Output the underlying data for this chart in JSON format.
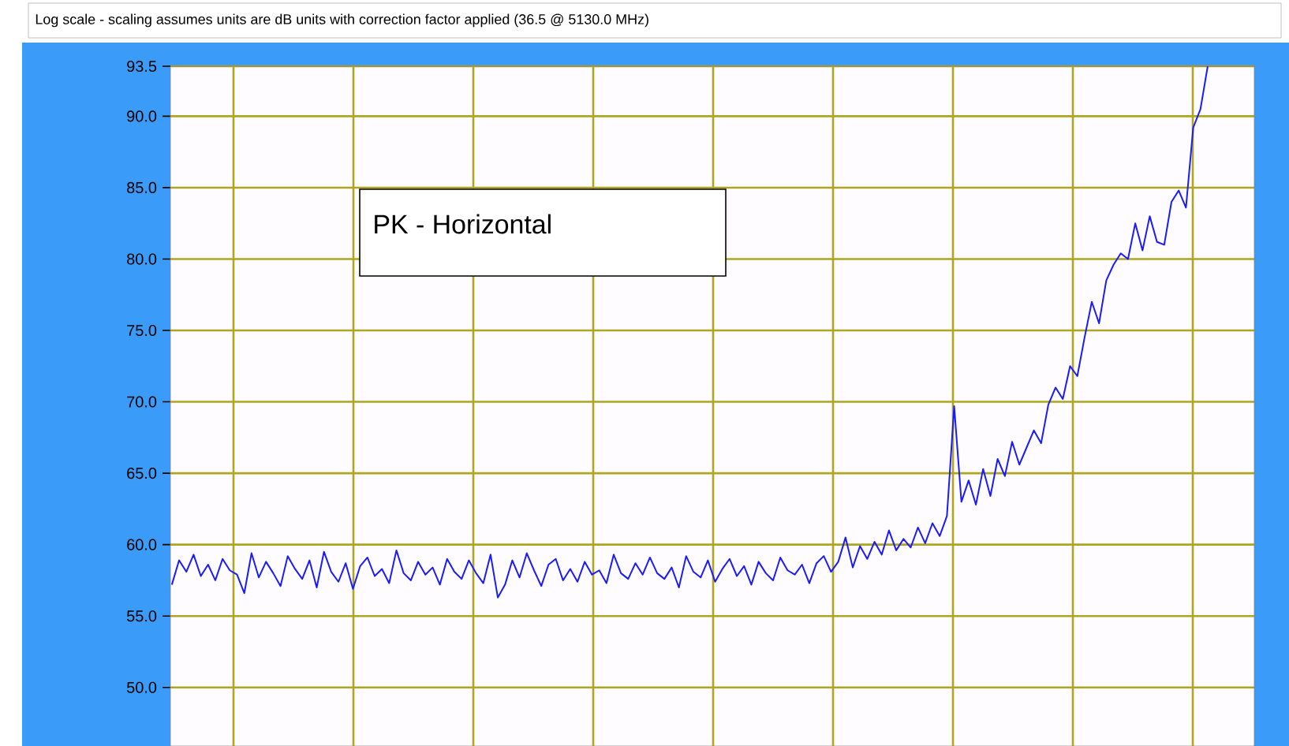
{
  "chart_data": {
    "type": "line",
    "title": "Log scale - scaling assumes units are dB units with correction factor applied (36.5 @ 5130.0 MHz)",
    "annotations": [
      "PK - Horizontal"
    ],
    "categories": [
      null,
      null,
      null,
      null,
      null,
      null,
      null,
      null,
      null,
      null,
      null,
      null,
      null,
      null,
      null,
      null,
      null,
      null,
      null,
      null,
      null,
      null,
      null,
      null,
      null,
      null,
      null,
      null,
      null,
      null,
      null,
      null,
      null,
      null,
      null,
      null,
      null,
      null,
      null,
      null,
      null,
      null,
      null,
      null,
      null,
      null,
      null,
      null,
      null,
      null,
      null,
      null,
      null,
      null,
      null,
      null,
      null,
      null,
      null,
      null,
      null,
      null,
      null,
      null,
      null,
      null,
      null,
      null,
      null,
      null,
      null,
      null,
      null,
      null,
      null,
      null,
      null,
      null,
      null,
      null,
      null,
      null,
      null,
      null,
      null,
      null,
      null,
      null,
      null,
      null,
      null,
      null,
      null,
      null,
      null,
      null,
      null,
      null,
      null,
      null,
      null,
      null,
      null,
      null,
      null,
      null,
      null,
      null,
      null,
      null,
      null,
      null,
      null,
      null,
      null,
      null,
      null,
      null,
      null,
      null,
      null,
      null,
      null,
      null,
      null,
      null,
      null,
      null,
      null,
      null,
      null,
      null,
      null,
      null,
      null,
      null,
      null,
      null,
      null,
      null,
      null,
      null,
      null,
      null
    ],
    "ylim": [
      45.9,
      93.5
    ],
    "yticks": [
      {
        "value": 50,
        "label": "50.0"
      },
      {
        "value": 55,
        "label": "55.0"
      },
      {
        "value": 60,
        "label": "60.0"
      },
      {
        "value": 65,
        "label": "65.0"
      },
      {
        "value": 70,
        "label": "70.0"
      },
      {
        "value": 75,
        "label": "75.0"
      },
      {
        "value": 80,
        "label": "80.0"
      },
      {
        "value": 85,
        "label": "85.0"
      },
      {
        "value": 90,
        "label": "90.0"
      },
      93.5
    ],
    "tick_labels": "y",
    "grid": true,
    "series": [
      {
        "color": "#1a1aff",
        "values": [
          57.2,
          58.9,
          58.1,
          59.3,
          57.8,
          58.6,
          57.5,
          59.0,
          58.2,
          57.9,
          56.6,
          59.4,
          57.7,
          58.8,
          58.0,
          57.1,
          59.2,
          58.3,
          57.6,
          58.9,
          57.0,
          59.5,
          58.1,
          57.4,
          58.7,
          56.9,
          58.5,
          59.1,
          57.8,
          58.3,
          57.3,
          59.6,
          58.0,
          57.5,
          58.8,
          57.9,
          58.4,
          57.2,
          59.0,
          58.1,
          57.6,
          58.9,
          58.0,
          57.3,
          59.3,
          56.3,
          57.2,
          58.9,
          57.7,
          59.4,
          58.2,
          57.1,
          58.6,
          59.0,
          57.5,
          58.3,
          57.4,
          58.8,
          57.9,
          58.2,
          57.3,
          59.3,
          58.0,
          57.6,
          58.7,
          57.9,
          59.1,
          58.0,
          57.6,
          58.4,
          57.0,
          59.2,
          58.1,
          57.7,
          58.9,
          57.4,
          58.3,
          59.0,
          57.8,
          58.5,
          57.2,
          58.8,
          58.0,
          57.5,
          59.1,
          58.2,
          57.9,
          58.6,
          57.3,
          58.7,
          59.2,
          58.1,
          58.8,
          60.5,
          58.4,
          59.9,
          59.0,
          60.2,
          59.3,
          61.0,
          59.6,
          60.4,
          59.8,
          61.2,
          60.1,
          61.5,
          60.6,
          62.0,
          69.7,
          63.0,
          64.5,
          62.8,
          65.3,
          63.4,
          66.0,
          64.8,
          67.2,
          65.6,
          66.8,
          68.0,
          67.1,
          69.8,
          71.0,
          70.2,
          72.5,
          71.8,
          74.5,
          77.0,
          75.5,
          78.5,
          79.6,
          80.4,
          80.0,
          82.5,
          80.6,
          83.0,
          81.2,
          81.0,
          84.0,
          84.8,
          83.6,
          89.2,
          90.5,
          93.5
        ]
      }
    ]
  }
}
